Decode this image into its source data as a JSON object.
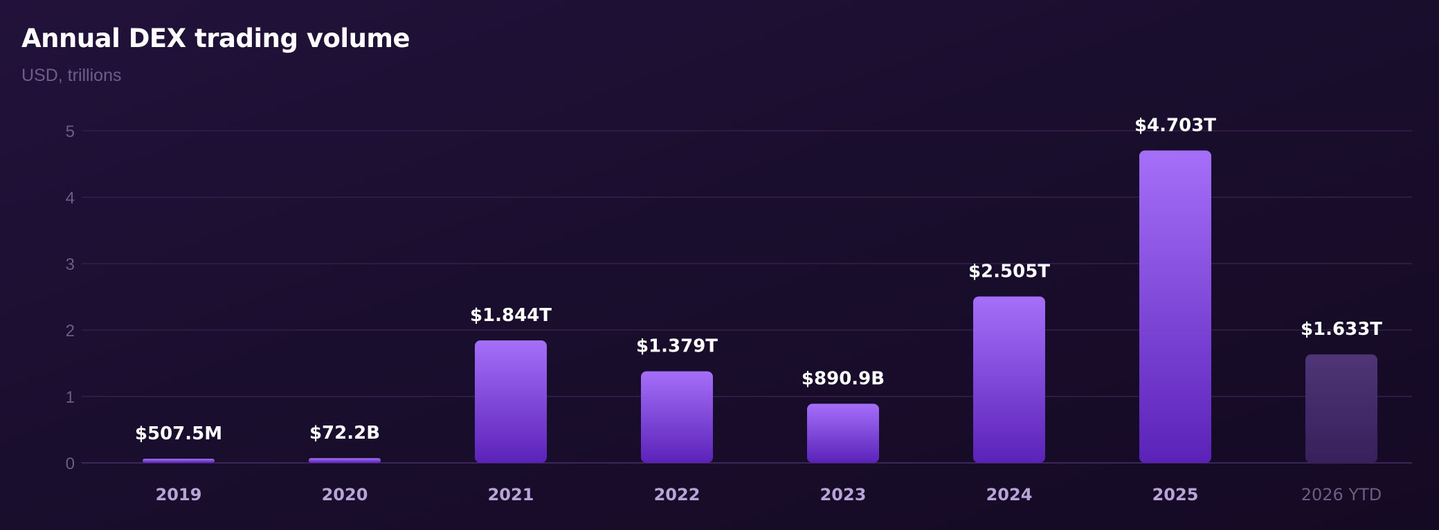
{
  "chart_data": {
    "type": "bar",
    "title": "Annual DEX trading volume",
    "subtitle": "USD, trillions",
    "xlabel": "",
    "ylabel": "",
    "ylim": [
      0,
      5
    ],
    "yticks": [
      0,
      1,
      2,
      3,
      4,
      5
    ],
    "grid": true,
    "categories": [
      "2019",
      "2020",
      "2021",
      "2022",
      "2023",
      "2024",
      "2025",
      "2026 YTD"
    ],
    "values": [
      0.0005075,
      0.0722,
      1.844,
      1.379,
      0.8909,
      2.505,
      4.703,
      1.633
    ],
    "labels": [
      "$507.5M",
      "$72.2B",
      "$1.844T",
      "$1.379T",
      "$890.9B",
      "$2.505T",
      "$4.703T",
      "$1.633T"
    ],
    "partial": [
      false,
      false,
      false,
      false,
      false,
      false,
      false,
      true
    ],
    "colors": {
      "bar_top": "#a56ff9",
      "bar_bottom": "#5b22b8",
      "bar_partial_top": "#4e3575",
      "bar_partial_bottom": "#37205c",
      "grid": "#2c1b45",
      "axis": "#3a2757"
    }
  }
}
